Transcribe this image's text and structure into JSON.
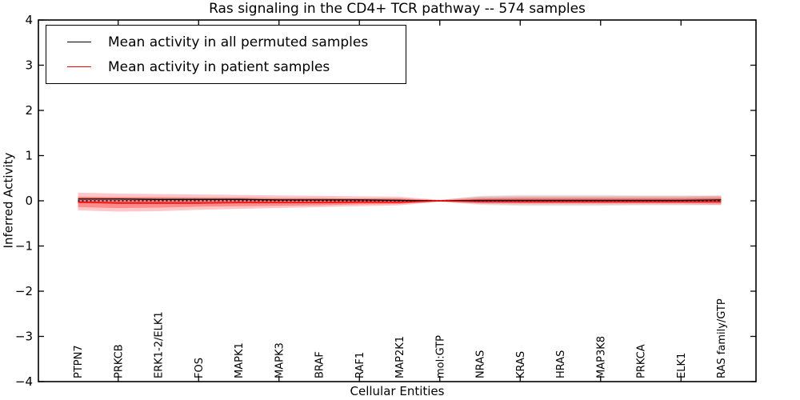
{
  "figure": {
    "title": "Ras signaling in the CD4+ TCR pathway -- 574 samples",
    "xlabel": "Cellular Entities",
    "ylabel": "Inferred Activity"
  },
  "legend": {
    "entries": [
      {
        "label": "Mean activity in all permuted samples",
        "color": "#000000"
      },
      {
        "label": "Mean activity in patient samples",
        "color": "#ff0000"
      }
    ]
  },
  "chart_data": {
    "type": "line",
    "title": "Ras signaling in the CD4+ TCR pathway -- 574 samples",
    "xlabel": "Cellular Entities",
    "ylabel": "Inferred Activity",
    "ylim": [
      -4,
      4
    ],
    "grid": false,
    "legend_position": "upper left",
    "ytick_values": [
      4,
      3,
      2,
      1,
      0,
      -1,
      -2,
      -3,
      -4
    ],
    "ytick_labels": [
      "4",
      "3",
      "2",
      "1",
      "0",
      "−1",
      "−2",
      "−3",
      "−4"
    ],
    "categories": [
      "PTPN7",
      "PRKCB",
      "ERK1-2/ELK1",
      "FOS",
      "MAPK1",
      "MAPK3",
      "BRAF",
      "RAF1",
      "MAP2K1",
      "mol:GTP",
      "NRAS",
      "KRAS",
      "HRAS",
      "MAP3K8",
      "PRKCA",
      "ELK1",
      "RAS family/GTP"
    ],
    "zero_reference_line": 0,
    "series": [
      {
        "name": "Mean activity in all permuted samples",
        "color": "#000000",
        "width": 1.3,
        "values": [
          0.04,
          0.04,
          0.03,
          0.03,
          0.03,
          0.02,
          0.02,
          0.02,
          0.01,
          0.0,
          0.01,
          0.01,
          0.01,
          0.01,
          0.01,
          0.01,
          0.02
        ]
      },
      {
        "name": "Mean activity in patient samples",
        "color": "#ff0000",
        "width": 1.6,
        "values": [
          -0.03,
          -0.05,
          -0.05,
          -0.05,
          -0.04,
          -0.04,
          -0.04,
          -0.03,
          -0.03,
          0.0,
          -0.02,
          -0.02,
          -0.02,
          -0.02,
          -0.02,
          -0.02,
          -0.02
        ]
      }
    ],
    "bands": [
      {
        "name": "permuted-samples-std-band",
        "color": "#000000",
        "alpha": 0.1,
        "upper": [
          0.08,
          0.08,
          0.07,
          0.07,
          0.06,
          0.06,
          0.06,
          0.05,
          0.05,
          0.02,
          0.11,
          0.13,
          0.13,
          0.13,
          0.12,
          0.12,
          0.12
        ],
        "lower": [
          -0.05,
          -0.05,
          -0.05,
          -0.05,
          -0.04,
          -0.04,
          -0.04,
          -0.04,
          -0.03,
          -0.02,
          -0.09,
          -0.11,
          -0.11,
          -0.11,
          -0.1,
          -0.1,
          -0.1
        ]
      },
      {
        "name": "patient-samples-std-outer-band",
        "color": "#ff0000",
        "alpha": 0.22,
        "upper": [
          0.18,
          0.16,
          0.15,
          0.14,
          0.13,
          0.12,
          0.11,
          0.1,
          0.09,
          0.02,
          0.09,
          0.1,
          0.1,
          0.1,
          0.1,
          0.1,
          0.11
        ],
        "lower": [
          -0.21,
          -0.24,
          -0.23,
          -0.2,
          -0.18,
          -0.16,
          -0.14,
          -0.12,
          -0.1,
          -0.02,
          -0.07,
          -0.08,
          -0.08,
          -0.08,
          -0.08,
          -0.08,
          -0.09
        ]
      },
      {
        "name": "patient-samples-std-inner-band",
        "color": "#ff0000",
        "alpha": 0.3,
        "upper": [
          0.09,
          0.08,
          0.08,
          0.07,
          0.07,
          0.06,
          0.06,
          0.05,
          0.05,
          0.01,
          0.05,
          0.06,
          0.06,
          0.06,
          0.06,
          0.06,
          0.07
        ],
        "lower": [
          -0.14,
          -0.16,
          -0.15,
          -0.13,
          -0.12,
          -0.11,
          -0.1,
          -0.08,
          -0.07,
          -0.01,
          -0.04,
          -0.05,
          -0.05,
          -0.05,
          -0.05,
          -0.05,
          -0.06
        ]
      }
    ]
  }
}
